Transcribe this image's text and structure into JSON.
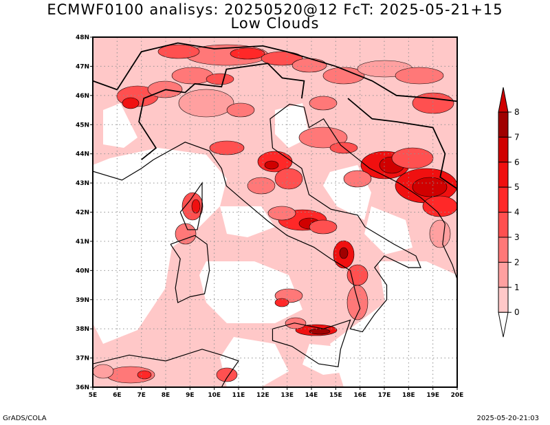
{
  "header": {
    "title_line1": "ECMWF0100 analisys: 20250520@12 FcT: 2025-05-21+15",
    "title_line2": "Low Clouds"
  },
  "footer": {
    "left": "GrADS/COLA",
    "right": "2025-05-20-21:03"
  },
  "colors": {
    "level_0": "#fff0f0",
    "level_1": "#ffc8c8",
    "level_2": "#ffa0a0",
    "level_3": "#ff7878",
    "level_4": "#ff5050",
    "level_5": "#ff2828",
    "level_6": "#f01010",
    "level_7": "#d00000",
    "level_8": "#a00000"
  },
  "map": {
    "lon_min": 5,
    "lon_max": 20,
    "lat_min": 36,
    "lat_max": 48,
    "lon_ticks": [
      "5E",
      "6E",
      "7E",
      "8E",
      "9E",
      "10E",
      "11E",
      "12E",
      "13E",
      "14E",
      "15E",
      "16E",
      "17E",
      "18E",
      "19E",
      "20E"
    ],
    "lat_ticks": [
      "36N",
      "37N",
      "38N",
      "39N",
      "40N",
      "41N",
      "42N",
      "43N",
      "44N",
      "45N",
      "46N",
      "47N",
      "48N"
    ]
  },
  "colorbar": {
    "labels": [
      "0",
      "1",
      "2",
      "3",
      "4",
      "5",
      "6",
      "7",
      "8"
    ]
  }
}
